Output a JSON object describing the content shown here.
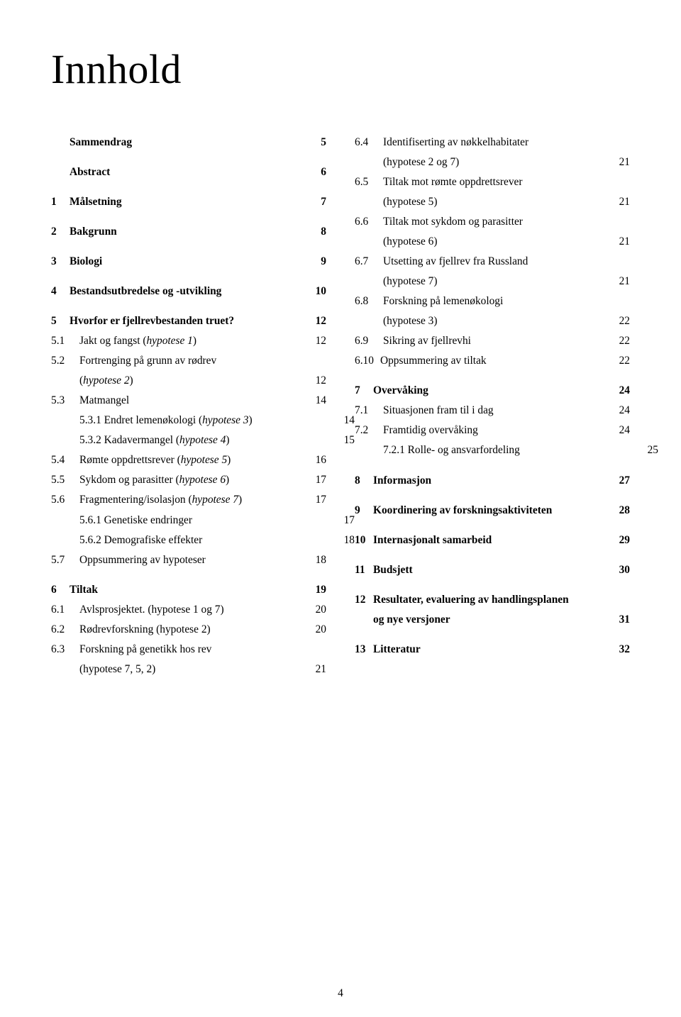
{
  "title": "Innhold",
  "pageNumber": "4",
  "leftColumn": [
    {
      "type": "row",
      "level": 0,
      "num": "",
      "label": "Sammendrag",
      "page": "5",
      "bold": true,
      "gap": false
    },
    {
      "type": "row",
      "level": 0,
      "num": "",
      "label": "Abstract",
      "page": "6",
      "bold": true,
      "gap": true
    },
    {
      "type": "row",
      "level": 0,
      "num": "1",
      "label": "Målsetning",
      "page": "7",
      "bold": true,
      "gap": true
    },
    {
      "type": "row",
      "level": 0,
      "num": "2",
      "label": "Bakgrunn",
      "page": "8",
      "bold": true,
      "gap": true
    },
    {
      "type": "row",
      "level": 0,
      "num": "3",
      "label": "Biologi",
      "page": "9",
      "bold": true,
      "gap": true
    },
    {
      "type": "row",
      "level": 0,
      "num": "4",
      "label": "Bestandsutbredelse og -utvikling",
      "page": "10",
      "bold": true,
      "gap": true
    },
    {
      "type": "row",
      "level": 0,
      "num": "5",
      "label": "Hvorfor er fjellrevbestanden truet?",
      "page": "12",
      "bold": true,
      "gap": true
    },
    {
      "type": "row",
      "level": 1,
      "num": "5.1",
      "prefix": "Jakt og fangst (",
      "italicPart": "hypotese 1",
      "suffix": ")",
      "page": "12"
    },
    {
      "type": "split",
      "level": 1,
      "num": "5.2",
      "line1": "Fortrenging på grunn av rødrev",
      "prefix2": "(",
      "italic2": "hypotese 2",
      "suffix2": ")",
      "page": "12"
    },
    {
      "type": "row",
      "level": 1,
      "num": "5.3",
      "label": "Matmangel",
      "page": "14"
    },
    {
      "type": "row",
      "level": 2,
      "indent": "indent-sub",
      "num": "5.3.1",
      "prefix": "5.3.1 Endret lemenøkologi (",
      "italicPart": "hypotese 3",
      "suffix": ")",
      "page": "14"
    },
    {
      "type": "row",
      "level": 2,
      "indent": "indent-sub",
      "num": "5.3.2",
      "prefix": "5.3.2 Kadavermangel (",
      "italicPart": "hypotese 4",
      "suffix": ")",
      "page": "15"
    },
    {
      "type": "row",
      "level": 1,
      "num": "5.4",
      "prefix": "Rømte oppdrettsrever (",
      "italicPart": "hypotese 5",
      "suffix": ")",
      "page": "16"
    },
    {
      "type": "row",
      "level": 1,
      "num": "5.5",
      "prefix": "Sykdom og parasitter (",
      "italicPart": "hypotese 6",
      "suffix": ")",
      "page": "17"
    },
    {
      "type": "row",
      "level": 1,
      "num": "5.6",
      "prefix": "Fragmentering/isolasjon (",
      "italicPart": "hypotese 7",
      "suffix": ")",
      "page": "17"
    },
    {
      "type": "row",
      "level": 2,
      "indent": "indent-sub",
      "label": "5.6.1 Genetiske endringer",
      "page": "17"
    },
    {
      "type": "row",
      "level": 2,
      "indent": "indent-sub",
      "label": "5.6.2 Demografiske effekter",
      "page": "18"
    },
    {
      "type": "row",
      "level": 1,
      "num": "5.7",
      "label": "Oppsummering av hypoteser",
      "page": "18"
    },
    {
      "type": "row",
      "level": 0,
      "num": "6",
      "label": "Tiltak",
      "page": "19",
      "bold": true,
      "gap": true
    },
    {
      "type": "row",
      "level": 1,
      "num": "6.1",
      "label": "Avlsprosjektet. (hypotese 1 og 7)",
      "page": "20"
    },
    {
      "type": "row",
      "level": 1,
      "num": "6.2",
      "label": "Rødrevforskning (hypotese 2)",
      "page": "20"
    },
    {
      "type": "split",
      "level": 1,
      "num": "6.3",
      "line1": "Forskning på genetikk hos rev",
      "line2": "(hypotese 7, 5, 2)",
      "page": "21"
    }
  ],
  "rightColumn": [
    {
      "type": "split",
      "level": 1,
      "num": "6.4",
      "line1": "Identifiserting av nøkkelhabitater",
      "line2": "(hypotese 2 og 7)",
      "page": "21"
    },
    {
      "type": "split",
      "level": 1,
      "num": "6.5",
      "line1": "Tiltak mot rømte oppdrettsrever",
      "line2": "(hypotese 5)",
      "page": "21"
    },
    {
      "type": "split",
      "level": 1,
      "num": "6.6",
      "line1": "Tiltak mot sykdom og parasitter",
      "line2": "(hypotese 6)",
      "page": "21"
    },
    {
      "type": "split",
      "level": 1,
      "num": "6.7",
      "line1": "Utsetting av fjellrev fra Russland",
      "line2": "(hypotese 7)",
      "page": "21"
    },
    {
      "type": "split",
      "level": 1,
      "num": "6.8",
      "line1": "Forskning på lemenøkologi",
      "line2": "(hypotese 3)",
      "page": "22"
    },
    {
      "type": "row",
      "level": 1,
      "num": "6.9",
      "label": "Sikring av fjellrevhi",
      "page": "22"
    },
    {
      "type": "row",
      "level": 1,
      "num": "6.10",
      "label": "Oppsummering av tiltak",
      "page": "22",
      "tightNum": true
    },
    {
      "type": "row",
      "level": 0,
      "num": "7",
      "label": "Overvåking",
      "page": "24",
      "bold": true,
      "gap": true
    },
    {
      "type": "row",
      "level": 1,
      "num": "7.1",
      "label": "Situasjonen fram til i dag",
      "page": "24"
    },
    {
      "type": "row",
      "level": 1,
      "num": "7.2",
      "label": "Framtidig overvåking",
      "page": "24"
    },
    {
      "type": "row",
      "level": 2,
      "indent": "indent-sub",
      "label": "7.2.1 Rolle- og ansvarfordeling",
      "page": "25"
    },
    {
      "type": "row",
      "level": 0,
      "num": "8",
      "label": "Informasjon",
      "page": "27",
      "bold": true,
      "gap": true
    },
    {
      "type": "row",
      "level": 0,
      "num": "9",
      "label": "Koordinering av forskningsaktiviteten",
      "page": "28",
      "bold": true,
      "gap": true
    },
    {
      "type": "row",
      "level": 0,
      "num": "10",
      "label": "Internasjonalt samarbeid",
      "page": "29",
      "bold": true,
      "gap": true
    },
    {
      "type": "row",
      "level": 0,
      "num": "11",
      "label": "Budsjett",
      "page": "30",
      "bold": true,
      "gap": true
    },
    {
      "type": "split",
      "level": 0,
      "num": "12",
      "line1": "Resultater, evaluering av handlingsplanen",
      "line2": "og nye versjoner",
      "page": "31",
      "bold": true,
      "gap": true
    },
    {
      "type": "row",
      "level": 0,
      "num": "13",
      "label": "Litteratur",
      "page": "32",
      "bold": true,
      "gap": true
    }
  ]
}
